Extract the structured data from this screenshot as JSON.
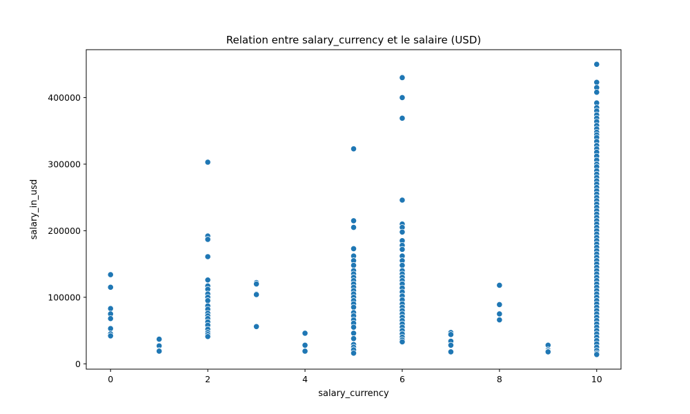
{
  "chart_data": {
    "type": "scatter",
    "title": "Relation entre salary_currency et le salaire (USD)",
    "xlabel": "salary_currency",
    "ylabel": "salary_in_usd",
    "xlim": [
      -0.5,
      10.5
    ],
    "ylim": [
      -8000,
      472000
    ],
    "xticks": [
      0,
      2,
      4,
      6,
      8,
      10
    ],
    "xtick_labels": [
      "0",
      "2",
      "4",
      "6",
      "8",
      "10"
    ],
    "yticks": [
      0,
      100000,
      200000,
      300000,
      400000
    ],
    "ytick_labels": [
      "0",
      "100000",
      "200000",
      "300000",
      "400000"
    ],
    "grid": false,
    "marker_color": "#1f77b4",
    "points": [
      {
        "x": 0,
        "values": [
          134000,
          115000,
          83000,
          75000,
          68000,
          53000,
          45000,
          42000
        ]
      },
      {
        "x": 1,
        "values": [
          37000,
          27000,
          20000,
          19000
        ]
      },
      {
        "x": 2,
        "values": [
          303000,
          192000,
          187000,
          161000,
          126000,
          117000,
          112000,
          105000,
          100000,
          95000,
          87000,
          82000,
          76000,
          72000,
          68000,
          63000,
          58000,
          52000,
          47000,
          44000,
          41000
        ]
      },
      {
        "x": 3,
        "values": [
          122000,
          120000,
          105000,
          104000,
          56000
        ]
      },
      {
        "x": 4,
        "values": [
          46000,
          28000,
          19000
        ]
      },
      {
        "x": 5,
        "values": [
          323000,
          215000,
          205000,
          173000,
          162000,
          155000,
          148000,
          140000,
          135000,
          130000,
          125000,
          120000,
          115000,
          110000,
          105000,
          100000,
          95000,
          90000,
          85000,
          77000,
          72000,
          66000,
          61000,
          55000,
          46000,
          38000,
          29000,
          25000,
          21000,
          16000
        ]
      },
      {
        "x": 6,
        "values": [
          431000,
          430000,
          400000,
          369000,
          246000,
          210000,
          205000,
          198000,
          185000,
          178000,
          172000,
          162000,
          155000,
          148000,
          140000,
          135000,
          130000,
          125000,
          120000,
          114000,
          108000,
          102000,
          96000,
          90000,
          85000,
          80000,
          75000,
          70000,
          65000,
          60000,
          55000,
          50000,
          45000,
          40000,
          36000,
          33000
        ]
      },
      {
        "x": 7,
        "values": [
          47000,
          44000,
          34000,
          28000,
          18000
        ]
      },
      {
        "x": 8,
        "values": [
          118000,
          89000,
          75000,
          66000
        ]
      },
      {
        "x": 9,
        "values": [
          28000,
          21000,
          19000,
          18000
        ]
      },
      {
        "x": 10,
        "values": [
          450000,
          423000,
          415000,
          408000,
          392000,
          385000,
          380000,
          374000,
          369000,
          364000,
          358000,
          353000,
          348000,
          344000,
          340000,
          334000,
          328000,
          323000,
          318000,
          312000,
          306000,
          300000,
          296000,
          290000,
          285000,
          280000,
          275000,
          270000,
          265000,
          260000,
          255000,
          250000,
          245000,
          240000,
          235000,
          230000,
          225000,
          220000,
          215000,
          210000,
          205000,
          200000,
          195000,
          190000,
          185000,
          180000,
          175000,
          170000,
          165000,
          160000,
          155000,
          150000,
          145000,
          140000,
          135000,
          130000,
          125000,
          120000,
          115000,
          110000,
          105000,
          100000,
          95000,
          90000,
          85000,
          80000,
          75000,
          70000,
          65000,
          60000,
          55000,
          50000,
          45000,
          40000,
          35000,
          30000,
          25000,
          20000,
          16000,
          14000
        ]
      }
    ]
  }
}
